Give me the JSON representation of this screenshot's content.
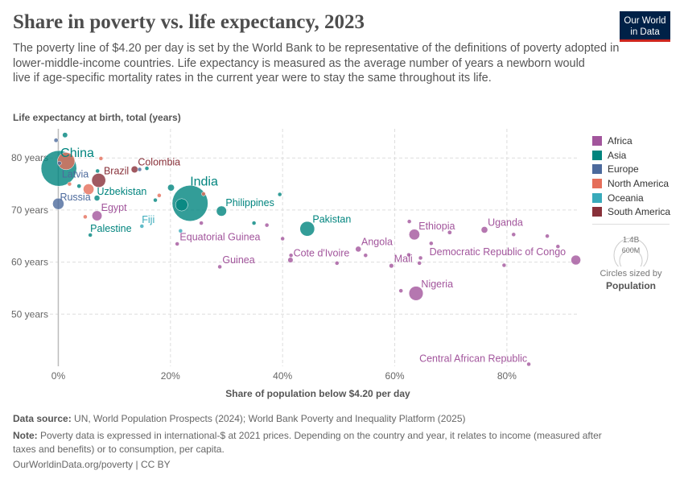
{
  "header": {
    "title": "Share in poverty vs. life expectancy, 2023",
    "subtitle_lines": [
      "The poverty line of $4.20 per day is set by the World Bank to be representative of the definitions of poverty adopted in",
      "lower-middle-income countries. Life expectancy is measured as the average number of years a newborn would",
      "live if age-specific mortality rates in the current year were to stay the same throughout its life."
    ],
    "logo": [
      "Our World",
      "in Data"
    ]
  },
  "footer": {
    "source_label": "Data source:",
    "source": " UN, World Population Prospects (2024); World Bank Poverty and Inequality Platform (2025)",
    "note_label": "Note:",
    "note_lines": [
      " Poverty data is expressed in international-$ at 2021 prices. Depending on the country and year, it relates to income (measured after",
      "taxes and benefits) or to consumption, per capita."
    ],
    "url": "OurWorldinData.org/poverty | CC BY"
  },
  "size_legend": {
    "big": "1.4B",
    "small": "600M",
    "caption": "Circles sized by",
    "variable": "Population"
  },
  "chart_data": {
    "type": "scatter",
    "title": "Share in poverty vs. life expectancy, 2023",
    "xlabel": "Share of population below $4.20 per day",
    "ylabel": "Life expectancy at birth, total (years)",
    "xlim": [
      -1.5,
      92.5
    ],
    "ylim": [
      40,
      85.6
    ],
    "xticks": [
      {
        "v": 0,
        "label": "0%"
      },
      {
        "v": 20,
        "label": "20%"
      },
      {
        "v": 40,
        "label": "40%"
      },
      {
        "v": 60,
        "label": "60%"
      },
      {
        "v": 80,
        "label": "80%"
      }
    ],
    "yticks": [
      {
        "v": 50,
        "label": "50 years"
      },
      {
        "v": 60,
        "label": "60 years"
      },
      {
        "v": 70,
        "label": "70 years"
      },
      {
        "v": 80,
        "label": "80 years"
      }
    ],
    "grid": true,
    "legend_placement": "right",
    "colors": {
      "Africa": "#a2559c",
      "Asia": "#00847e",
      "Europe": "#4c6a9c",
      "North America": "#e56e5a",
      "Oceania": "#38aaba",
      "South America": "#883039"
    },
    "legend": [
      "Africa",
      "Asia",
      "Europe",
      "North America",
      "Oceania",
      "South America"
    ],
    "points": [
      {
        "label": "China",
        "region": "Asia",
        "x": 0.1,
        "y": 78,
        "pop": 1410
      },
      {
        "label": "India",
        "region": "Asia",
        "x": 23.5,
        "y": 71.3,
        "pop": 1430
      },
      {
        "label": "Pakistan",
        "region": "Asia",
        "x": 44.4,
        "y": 66.4,
        "pop": 240
      },
      {
        "label": "Philippines",
        "region": "Asia",
        "x": 29.1,
        "y": 69.8,
        "pop": 115
      },
      {
        "label": "Uzbekistan",
        "region": "Asia",
        "x": 6.9,
        "y": 72.3,
        "pop": 36
      },
      {
        "label": "Palestine",
        "region": "Asia",
        "x": 5.7,
        "y": 65.2,
        "pop": 5
      },
      {
        "label": "Nigeria",
        "region": "Africa",
        "x": 63.8,
        "y": 54,
        "pop": 225
      },
      {
        "label": "Ethiopia",
        "region": "Africa",
        "x": 63.5,
        "y": 65.3,
        "pop": 128
      },
      {
        "label": "Uganda",
        "region": "Africa",
        "x": 76,
        "y": 66.2,
        "pop": 48
      },
      {
        "label": "Democratic Republic of Congo",
        "region": "Africa",
        "x": 92.3,
        "y": 60.4,
        "pop": 105
      },
      {
        "label": "Central African Republic",
        "region": "Africa",
        "x": 83.9,
        "y": 40.4,
        "pop": 5
      },
      {
        "label": "Angola",
        "region": "Africa",
        "x": 53.5,
        "y": 62.5,
        "pop": 36
      },
      {
        "label": "Mali",
        "region": "Africa",
        "x": 59.4,
        "y": 59.3,
        "pop": 23
      },
      {
        "label": "Cote d'Ivoire",
        "region": "Africa",
        "x": 41.4,
        "y": 60.4,
        "pop": 31
      },
      {
        "label": "Guinea",
        "region": "Africa",
        "x": 28.8,
        "y": 59.1,
        "pop": 14
      },
      {
        "label": "Equatorial Guinea",
        "region": "Africa",
        "x": 21.2,
        "y": 63.5,
        "pop": 2
      },
      {
        "label": "Egypt",
        "region": "Africa",
        "x": 6.9,
        "y": 68.9,
        "pop": 112
      },
      {
        "label": "Fiji",
        "region": "Oceania",
        "x": 14.9,
        "y": 66.9,
        "pop": 1
      },
      {
        "label": "Brazil",
        "region": "South America",
        "x": 7.2,
        "y": 75.7,
        "pop": 216
      },
      {
        "label": "Colombia",
        "region": "South America",
        "x": 13.6,
        "y": 77.8,
        "pop": 52
      },
      {
        "label": "Russia",
        "region": "Europe",
        "x": 0,
        "y": 71.2,
        "pop": 144
      },
      {
        "label": "Latvia",
        "region": "Europe",
        "x": 0.2,
        "y": 79,
        "pop": 2
      },
      {
        "label": "",
        "region": "North America",
        "x": 1.4,
        "y": 79.4,
        "pop": 335
      },
      {
        "label": "",
        "region": "North America",
        "x": 5.4,
        "y": 74,
        "pop": 128
      },
      {
        "label": "",
        "region": "Asia",
        "x": 1.2,
        "y": 84.4,
        "pop": 30
      },
      {
        "label": "",
        "region": "Asia",
        "x": 20.1,
        "y": 74.3,
        "pop": 50
      },
      {
        "label": "",
        "region": "Asia",
        "x": 22,
        "y": 71,
        "pop": 170
      },
      {
        "label": "",
        "region": "Asia",
        "x": 39.5,
        "y": 73,
        "pop": 3
      },
      {
        "label": "",
        "region": "Asia",
        "x": 15.8,
        "y": 78,
        "pop": 3
      },
      {
        "label": "",
        "region": "Asia",
        "x": 3.7,
        "y": 74.6,
        "pop": 20
      },
      {
        "label": "",
        "region": "Asia",
        "x": 34.9,
        "y": 67.5,
        "pop": 3
      },
      {
        "label": "",
        "region": "Asia",
        "x": 17.3,
        "y": 71.9,
        "pop": 3
      },
      {
        "label": "",
        "region": "Asia",
        "x": 7,
        "y": 77.5,
        "pop": 8
      },
      {
        "label": "",
        "region": "Europe",
        "x": 14.5,
        "y": 77.8,
        "pop": 3
      },
      {
        "label": "",
        "region": "Europe",
        "x": -0.4,
        "y": 83.4,
        "pop": 20
      },
      {
        "label": "",
        "region": "North America",
        "x": 7.6,
        "y": 79.9,
        "pop": 3
      },
      {
        "label": "",
        "region": "North America",
        "x": 4.8,
        "y": 68.7,
        "pop": 3
      },
      {
        "label": "",
        "region": "North America",
        "x": 18,
        "y": 72.8,
        "pop": 3
      },
      {
        "label": "",
        "region": "North America",
        "x": 25.9,
        "y": 73.1,
        "pop": 3
      },
      {
        "label": "",
        "region": "North America",
        "x": 2,
        "y": 75,
        "pop": 3
      },
      {
        "label": "",
        "region": "Africa",
        "x": 62.6,
        "y": 67.8,
        "pop": 3
      },
      {
        "label": "",
        "region": "Africa",
        "x": 69.8,
        "y": 65.7,
        "pop": 20
      },
      {
        "label": "",
        "region": "Africa",
        "x": 66.5,
        "y": 63.6,
        "pop": 15
      },
      {
        "label": "",
        "region": "Africa",
        "x": 81.2,
        "y": 65.3,
        "pop": 3
      },
      {
        "label": "",
        "region": "Africa",
        "x": 87.2,
        "y": 65,
        "pop": 3
      },
      {
        "label": "",
        "region": "Africa",
        "x": 89.1,
        "y": 63,
        "pop": 5
      },
      {
        "label": "",
        "region": "Africa",
        "x": 62.5,
        "y": 61.4,
        "pop": 3
      },
      {
        "label": "",
        "region": "Africa",
        "x": 64.6,
        "y": 60.8,
        "pop": 3
      },
      {
        "label": "",
        "region": "Africa",
        "x": 64.4,
        "y": 59.8,
        "pop": 3
      },
      {
        "label": "",
        "region": "Africa",
        "x": 79.5,
        "y": 59.4,
        "pop": 5
      },
      {
        "label": "",
        "region": "Africa",
        "x": 61.1,
        "y": 54.5,
        "pop": 3
      },
      {
        "label": "",
        "region": "Africa",
        "x": 49.7,
        "y": 59.8,
        "pop": 3
      },
      {
        "label": "",
        "region": "Africa",
        "x": 54.8,
        "y": 61.3,
        "pop": 3
      },
      {
        "label": "",
        "region": "Africa",
        "x": 40,
        "y": 64.5,
        "pop": 3
      },
      {
        "label": "",
        "region": "Africa",
        "x": 37.2,
        "y": 67.1,
        "pop": 3
      },
      {
        "label": "",
        "region": "Africa",
        "x": 41.5,
        "y": 61.3,
        "pop": 5
      },
      {
        "label": "",
        "region": "Africa",
        "x": 25.5,
        "y": 67.5,
        "pop": 3
      },
      {
        "label": "",
        "region": "Oceania",
        "x": 21.8,
        "y": 66,
        "pop": 3
      }
    ]
  }
}
